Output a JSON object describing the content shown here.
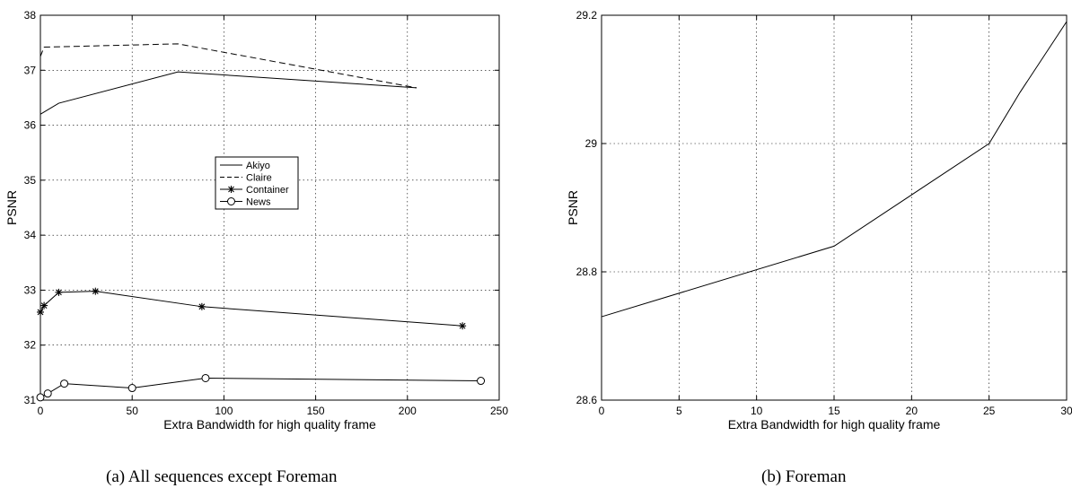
{
  "captions": {
    "a": "(a) All sequences except Foreman",
    "b": "(b) Foreman"
  },
  "chart_data": [
    {
      "type": "line",
      "title": "",
      "xlabel": "Extra Bandwidth for high quality frame",
      "ylabel": "PSNR",
      "xlim": [
        0,
        250
      ],
      "ylim": [
        31,
        38
      ],
      "xticks": [
        0,
        50,
        100,
        150,
        200,
        250
      ],
      "yticks": [
        31,
        32,
        33,
        34,
        35,
        36,
        37,
        38
      ],
      "grid": true,
      "legend": "center",
      "series": [
        {
          "name": "Akiyo",
          "style": "solid",
          "marker": "none",
          "x": [
            0,
            10,
            75,
            205
          ],
          "y": [
            36.2,
            36.4,
            36.97,
            36.68
          ]
        },
        {
          "name": "Claire",
          "style": "dashed",
          "marker": "none",
          "x": [
            0,
            2,
            75,
            205
          ],
          "y": [
            37.25,
            37.42,
            37.48,
            36.68
          ]
        },
        {
          "name": "Container",
          "style": "solid",
          "marker": "star",
          "x": [
            0,
            2,
            10,
            30,
            88,
            230
          ],
          "y": [
            32.6,
            32.72,
            32.96,
            32.98,
            32.7,
            32.35
          ]
        },
        {
          "name": "News",
          "style": "solid",
          "marker": "circle",
          "x": [
            0,
            4,
            13,
            50,
            90,
            240
          ],
          "y": [
            31.05,
            31.12,
            31.3,
            31.22,
            31.4,
            31.35
          ]
        }
      ]
    },
    {
      "type": "line",
      "title": "",
      "xlabel": "Extra Bandwidth for high quality frame",
      "ylabel": "PSNR",
      "xlim": [
        0,
        30
      ],
      "ylim": [
        28.6,
        29.2
      ],
      "xticks": [
        0,
        5,
        10,
        15,
        20,
        25,
        30
      ],
      "yticks": [
        28.6,
        28.8,
        29,
        29.2
      ],
      "grid": true,
      "series": [
        {
          "style": "solid",
          "marker": "none",
          "x": [
            0,
            15,
            25,
            27,
            30
          ],
          "y": [
            28.73,
            28.84,
            29.0,
            29.08,
            29.19
          ]
        }
      ]
    }
  ]
}
